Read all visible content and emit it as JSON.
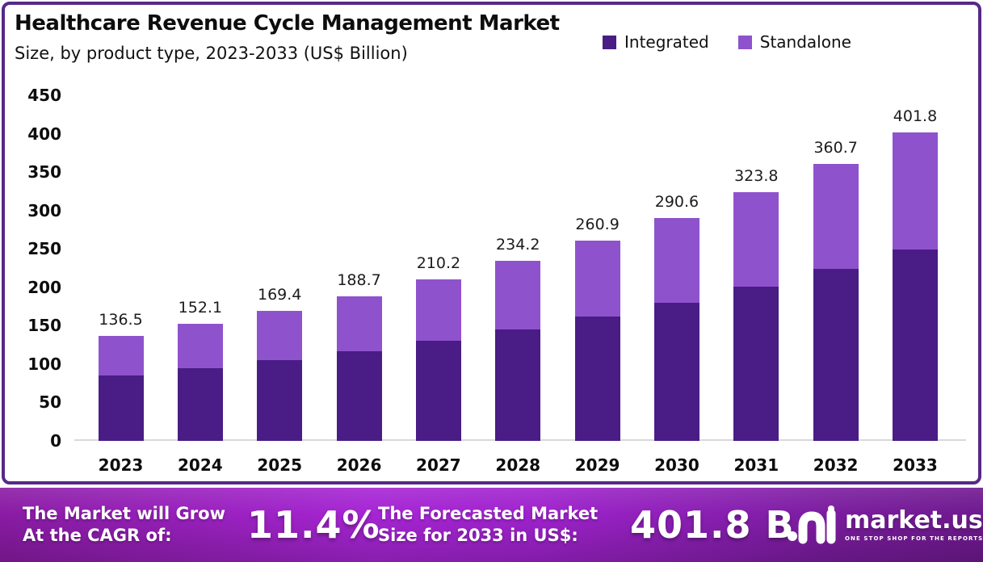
{
  "header": {
    "title": "Healthcare Revenue Cycle Management Market",
    "subtitle": "Size, by product type, 2023-2033 (US$ Billion)"
  },
  "legend": [
    {
      "label": "Integrated",
      "color": "#4A1C85"
    },
    {
      "label": "Standalone",
      "color": "#8F52CD"
    }
  ],
  "chart_data": {
    "type": "bar",
    "stacked": true,
    "title": "Healthcare Revenue Cycle Management Market Size, by product type, 2023-2033 (US$ Billion)",
    "categories": [
      "2023",
      "2024",
      "2025",
      "2026",
      "2027",
      "2028",
      "2029",
      "2030",
      "2031",
      "2032",
      "2033"
    ],
    "series": [
      {
        "name": "Integrated",
        "color": "#4A1C85",
        "values": [
          84.9,
          94.3,
          105.0,
          117.0,
          130.3,
          145.2,
          161.8,
          180.2,
          200.8,
          223.6,
          249.1
        ]
      },
      {
        "name": "Standalone",
        "color": "#8F52CD",
        "values": [
          51.6,
          57.8,
          64.4,
          71.7,
          79.9,
          89.0,
          99.1,
          110.4,
          123.0,
          137.1,
          152.7
        ]
      }
    ],
    "totals": [
      "136.5",
      "152.1",
      "169.4",
      "188.7",
      "210.2",
      "234.2",
      "260.9",
      "290.6",
      "323.8",
      "360.7",
      "401.8"
    ],
    "xlabel": "",
    "ylabel": "US$ Billion",
    "ylim": [
      0,
      450
    ],
    "ytick_step": 50,
    "grid": false,
    "legend_position": "top-right"
  },
  "footer": {
    "cagr_line1": "The Market will Grow",
    "cagr_line2": "At the CAGR of:",
    "cagr_value": "11.4%",
    "forecast_line1": "The Forecasted Market",
    "forecast_line2": "Size for 2033 in US$:",
    "forecast_value": "401.8 B",
    "brand": "market.us",
    "tagline": "ONE STOP SHOP FOR THE REPORTS"
  }
}
